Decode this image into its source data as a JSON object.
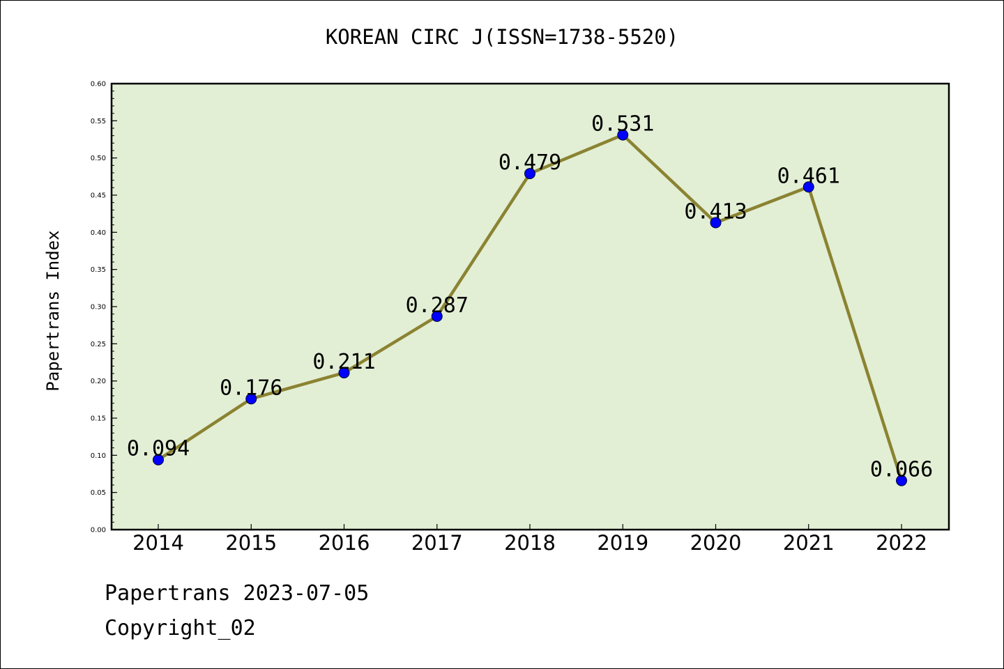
{
  "chart_data": {
    "type": "line",
    "title": "KOREAN CIRC J(ISSN=1738-5520)",
    "xlabel": "",
    "ylabel": "Papertrans Index",
    "categories": [
      "2014",
      "2015",
      "2016",
      "2017",
      "2018",
      "2019",
      "2020",
      "2021",
      "2022"
    ],
    "values": [
      0.094,
      0.176,
      0.211,
      0.287,
      0.479,
      0.531,
      0.413,
      0.461,
      0.066
    ],
    "value_labels": [
      "0.094",
      "0.176",
      "0.211",
      "0.287",
      "0.479",
      "0.531",
      "0.413",
      "0.461",
      "0.066"
    ],
    "ylim": [
      0.0,
      0.6
    ],
    "yticks": [
      "0.00",
      "0.05",
      "0.10",
      "0.15",
      "0.20",
      "0.25",
      "0.30",
      "0.35",
      "0.40",
      "0.45",
      "0.50",
      "0.55",
      "0.60"
    ],
    "grid": false,
    "colors": {
      "background": "#e2efd5",
      "line": "#8b8332",
      "marker": "#0000ff"
    }
  },
  "footer": {
    "date_line": "Papertrans 2023-07-05",
    "copyright_line": "Copyright_02"
  }
}
